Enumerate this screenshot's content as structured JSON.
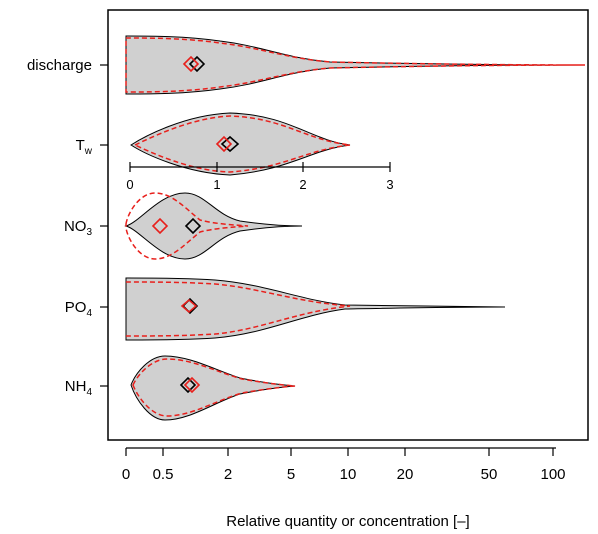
{
  "chart_data": {
    "type": "violin",
    "orientation": "horizontal",
    "xlabel": "Relative quantity or concentration [–]",
    "x_scale": "signed-log-like (0 at left, then log spacing)",
    "x_ticks": [
      {
        "value": 0,
        "label": "0"
      },
      {
        "value": 0.5,
        "label": "0.5"
      },
      {
        "value": 2,
        "label": "2"
      },
      {
        "value": 5,
        "label": "5"
      },
      {
        "value": 10,
        "label": "10"
      },
      {
        "value": 20,
        "label": "20"
      },
      {
        "value": 50,
        "label": "50"
      },
      {
        "value": 100,
        "label": "100"
      }
    ],
    "inset_axis": {
      "for_category": "T_w",
      "x_ticks": [
        "0",
        "1",
        "2",
        "3"
      ],
      "range": [
        0,
        3
      ]
    },
    "categories": [
      {
        "name": "discharge",
        "sub": "",
        "range": [
          0,
          140
        ],
        "mode": 0.8,
        "median_black": 0.95,
        "median_red": 0.85
      },
      {
        "name": "T",
        "sub": "w",
        "range": [
          0.02,
          2.55
        ],
        "mode": 1.2,
        "median_black": 1.15,
        "median_red": 1.1
      },
      {
        "name": "NO",
        "sub": "3",
        "range": [
          0,
          6
        ],
        "mode": 0.75,
        "median_black": 0.85,
        "median_red": 0.45
      },
      {
        "name": "PO",
        "sub": "4",
        "range": [
          0,
          60
        ],
        "mode": 0.8,
        "median_black": 0.8,
        "median_red": 0.78
      },
      {
        "name": "NH",
        "sub": "4",
        "range": [
          0.08,
          5.2
        ],
        "mode": 0.45,
        "median_black": 0.75,
        "median_red": 0.8
      }
    ],
    "series": [
      {
        "name": "",
        "style": "grey filled violin, black outline, black diamond median",
        "color": "#000000"
      },
      {
        "name": "",
        "style": "red dashed outline, red diamond median",
        "color": "#e8201c"
      }
    ],
    "colors": {
      "fill": "#d0d0d0",
      "line": "#000000",
      "red": "#e8201c"
    },
    "grid": false,
    "legend": "none"
  }
}
